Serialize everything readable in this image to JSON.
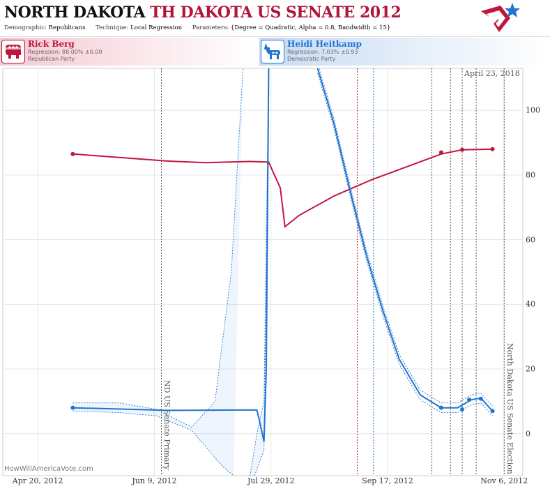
{
  "header": {
    "state": "NORTH DAKOTA",
    "race": "TH DAKOTA US SENATE 2012",
    "demographic_label": "Demographic:",
    "demographic_value": "Republicans",
    "technique_label": "Technique:",
    "technique_value": "Local Regression",
    "parameters_label": "Parameters:",
    "parameters_value": "{Degree = Quadratic, Alpha = 0.8, Bandwidth = 15}"
  },
  "candidates": [
    {
      "name": "Rick Berg",
      "regression": "Regression: 88.00% ±0.00",
      "party": "Republican Party",
      "color": "#c0163c",
      "icon": "elephant-icon"
    },
    {
      "name": "Heidi Heitkamp",
      "regression": "Regression: 7.03% ±0.93",
      "party": "Democratic Party",
      "color": "#1f74d0",
      "icon": "donkey-icon"
    }
  ],
  "as_of": "April 23, 2018",
  "credit": "HowWillAmericaVote.com",
  "chart_data": {
    "type": "line",
    "x_labels": [
      "Apr 20, 2012",
      "Jun 9, 2012",
      "Jul 29, 2012",
      "Sep 17, 2012",
      "Nov 6, 2012"
    ],
    "y_ticks": [
      0,
      20,
      40,
      60,
      80,
      100
    ],
    "ylim": [
      -13,
      113
    ],
    "xlim": [
      "2012-04-05",
      "2012-11-14"
    ],
    "grid": true,
    "events": [
      {
        "date": "2012-06-12",
        "label": "ND US Senate Primary",
        "color": "#555555"
      },
      {
        "date": "2012-11-06",
        "label": "North Dakota US Senate Election",
        "color": "#555555"
      }
    ],
    "poll_lines": [
      {
        "date": "2012-09-04",
        "color": "#c0163c"
      },
      {
        "date": "2012-09-11",
        "color": "#1f74d0"
      },
      {
        "date": "2012-10-06",
        "color": "#555555"
      },
      {
        "date": "2012-10-14",
        "color": "#555555"
      },
      {
        "date": "2012-10-19",
        "color": "#555555"
      },
      {
        "date": "2012-10-25",
        "color": "#555555"
      }
    ],
    "series": [
      {
        "name": "Rick Berg",
        "color": "#c0163c",
        "points": [
          [
            "2012-05-05",
            86.5
          ],
          [
            "2012-06-15",
            84.3
          ],
          [
            "2012-07-01",
            83.8
          ],
          [
            "2012-07-20",
            84.2
          ],
          [
            "2012-07-28",
            84.0
          ],
          [
            "2012-08-02",
            76
          ],
          [
            "2012-08-04",
            64.0
          ],
          [
            "2012-08-10",
            67.5
          ],
          [
            "2012-08-25",
            73.5
          ],
          [
            "2012-09-10",
            78.5
          ],
          [
            "2012-09-25",
            82.5
          ],
          [
            "2012-10-10",
            86.5
          ],
          [
            "2012-10-19",
            87.8
          ],
          [
            "2012-11-01",
            88.0
          ]
        ],
        "markers": [
          [
            "2012-05-05",
            86.5
          ],
          [
            "2012-10-10",
            87.0
          ],
          [
            "2012-10-19",
            87.8
          ],
          [
            "2012-11-01",
            88.0
          ]
        ]
      },
      {
        "name": "Heidi Heitkamp",
        "color": "#1f74d0",
        "points": [
          [
            "2012-05-05",
            8.0
          ],
          [
            "2012-06-15",
            7.2
          ],
          [
            "2012-07-15",
            7.3
          ],
          [
            "2012-07-23",
            7.3
          ],
          [
            "2012-07-25",
            1.0
          ],
          [
            "2012-07-26",
            -2.5
          ],
          [
            "2012-07-27",
            20
          ],
          [
            "2012-07-28",
            113
          ]
        ],
        "points_2": [
          [
            "2012-08-18",
            113
          ],
          [
            "2012-08-25",
            96
          ],
          [
            "2012-09-01",
            75
          ],
          [
            "2012-09-08",
            55
          ],
          [
            "2012-09-15",
            38
          ],
          [
            "2012-09-22",
            23
          ],
          [
            "2012-10-01",
            12
          ],
          [
            "2012-10-10",
            8.0
          ],
          [
            "2012-10-17",
            8.0
          ],
          [
            "2012-10-23",
            10.5
          ],
          [
            "2012-10-27",
            11.0
          ],
          [
            "2012-11-01",
            7.0
          ]
        ],
        "markers": [
          [
            "2012-05-05",
            8.0
          ],
          [
            "2012-10-10",
            8.0
          ],
          [
            "2012-10-19",
            7.5
          ],
          [
            "2012-10-22",
            10.5
          ],
          [
            "2012-10-27",
            10.8
          ],
          [
            "2012-11-01",
            7.0
          ]
        ]
      }
    ],
    "confidence_band": {
      "color": "#1f74d0",
      "upper": [
        [
          "2012-05-05",
          9.5
        ],
        [
          "2012-05-25",
          9.5
        ],
        [
          "2012-06-10",
          7.5
        ],
        [
          "2012-06-25",
          2.0
        ],
        [
          "2012-07-05",
          10
        ],
        [
          "2012-07-12",
          50
        ],
        [
          "2012-07-17",
          113
        ]
      ],
      "lower": [
        [
          "2012-05-05",
          7.0
        ],
        [
          "2012-05-25",
          6.5
        ],
        [
          "2012-06-10",
          5.5
        ],
        [
          "2012-06-25",
          1.0
        ],
        [
          "2012-07-08",
          -10
        ],
        [
          "2012-07-13",
          -13
        ]
      ],
      "upper_2": [
        [
          "2012-07-20",
          -13
        ],
        [
          "2012-07-23",
          0
        ],
        [
          "2012-07-26",
          10
        ],
        [
          "2012-07-28",
          113
        ]
      ],
      "lower_2": [
        [
          "2012-07-22",
          -13
        ],
        [
          "2012-07-26",
          -5
        ],
        [
          "2012-07-28",
          113
        ]
      ]
    }
  }
}
